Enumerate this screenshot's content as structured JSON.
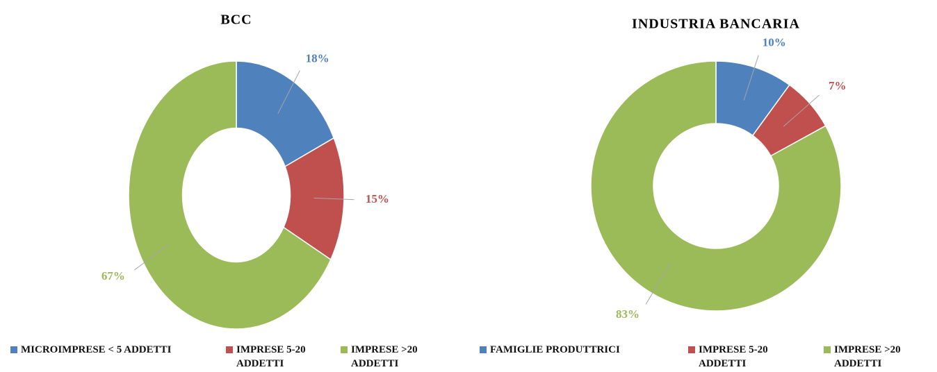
{
  "chart_data": [
    {
      "type": "donut",
      "title": "BCC",
      "categories": [
        "MICROIMPRESE < 5 ADDETTI",
        "IMPRESE 5-20 ADDETTI",
        "IMPRESE >20 ADDETTI"
      ],
      "values": [
        18,
        15,
        67
      ],
      "value_labels": [
        "18%",
        "15%",
        "67%"
      ],
      "colors": [
        "#4f81bd",
        "#c0504d",
        "#9bbb59"
      ],
      "legend": "bottom"
    },
    {
      "type": "donut",
      "title": "INDUSTRIA BANCARIA",
      "categories": [
        "FAMIGLIE PRODUTTRICI",
        "IMPRESE 5-20 ADDETTI",
        "IMPRESE >20 ADDETTI"
      ],
      "values": [
        10,
        7,
        83
      ],
      "value_labels": [
        "10%",
        "7%",
        "83%"
      ],
      "colors": [
        "#4f81bd",
        "#c0504d",
        "#9bbb59"
      ],
      "legend": "bottom"
    }
  ]
}
